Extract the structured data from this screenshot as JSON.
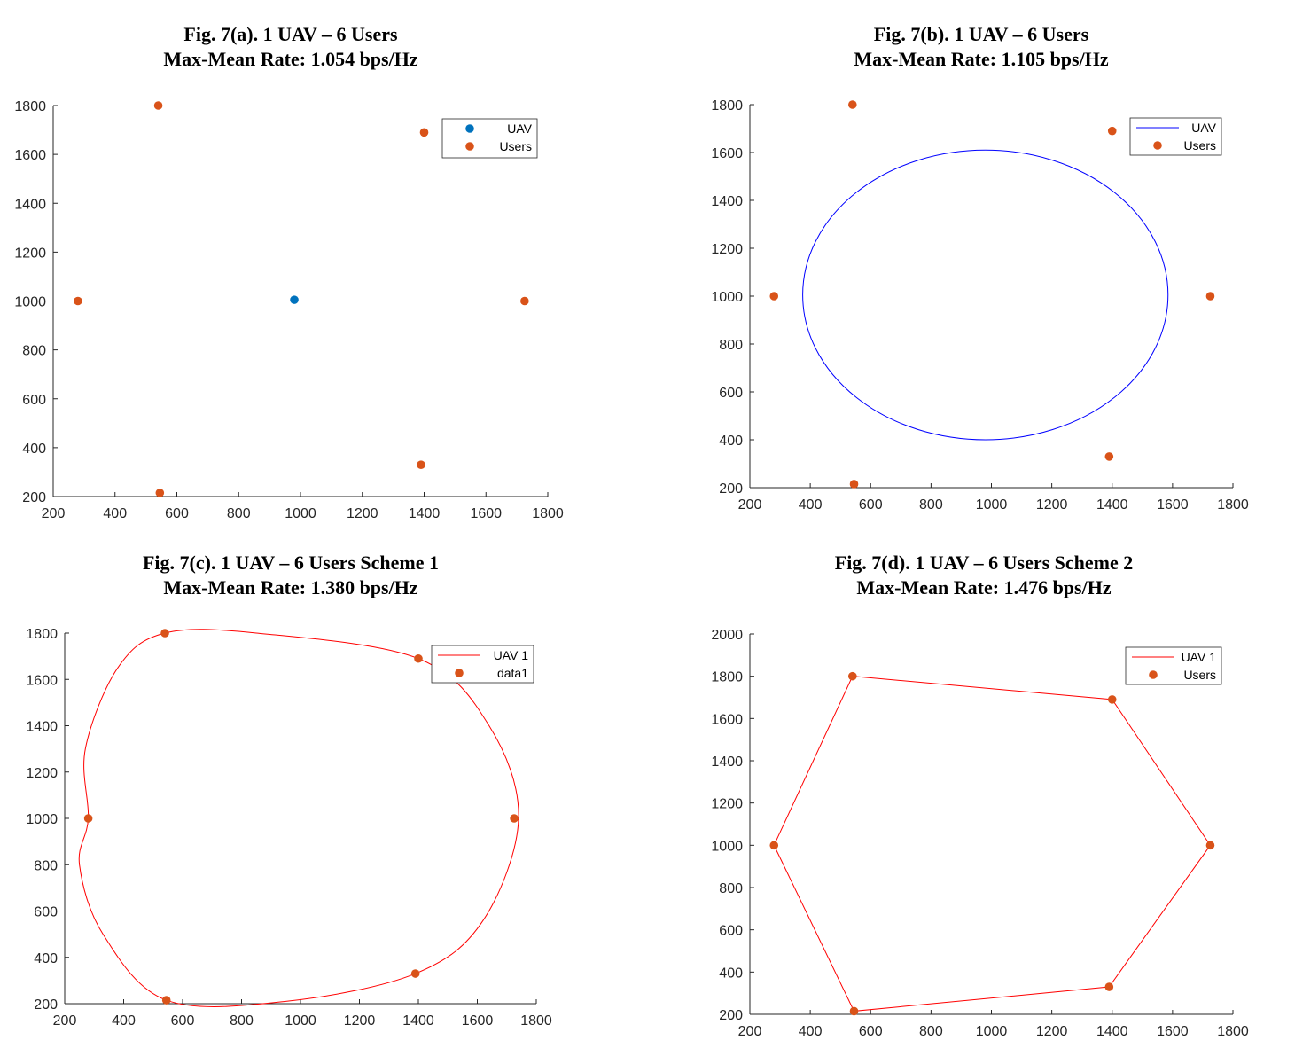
{
  "chart_data": [
    {
      "id": "a",
      "type": "scatter",
      "title": [
        "Fig. 7(a). 1 UAV – 6 Users",
        "Max-Mean Rate: 1.054 bps/Hz"
      ],
      "xlim": [
        200,
        1800
      ],
      "ylim": [
        200,
        1800
      ],
      "xticks": [
        200,
        400,
        600,
        800,
        1000,
        1200,
        1400,
        1600,
        1800
      ],
      "yticks": [
        200,
        400,
        600,
        800,
        1000,
        1200,
        1400,
        1600,
        1800
      ],
      "legend_position": "top-right",
      "series": [
        {
          "name": "UAV",
          "kind": "points",
          "color": "#0072BD",
          "points": [
            [
              980,
              1005
            ]
          ]
        },
        {
          "name": "Users",
          "kind": "points",
          "color": "#D95319",
          "points": [
            [
              540,
              1800
            ],
            [
              1400,
              1690
            ],
            [
              280,
              1000
            ],
            [
              1725,
              1000
            ],
            [
              545,
              215
            ],
            [
              1390,
              330
            ]
          ]
        }
      ]
    },
    {
      "id": "b",
      "type": "scatter",
      "title": [
        "Fig. 7(b). 1 UAV – 6 Users",
        "Max-Mean Rate: 1.105 bps/Hz"
      ],
      "xlim": [
        200,
        1800
      ],
      "ylim": [
        200,
        1800
      ],
      "xticks": [
        200,
        400,
        600,
        800,
        1000,
        1200,
        1400,
        1600,
        1800
      ],
      "yticks": [
        200,
        400,
        600,
        800,
        1000,
        1200,
        1400,
        1600,
        1800
      ],
      "legend_position": "top-right",
      "series": [
        {
          "name": "UAV",
          "kind": "ellipse",
          "color": "#0000FF",
          "center": [
            980,
            1005
          ],
          "radius_x": 605,
          "radius_y": 605
        },
        {
          "name": "Users",
          "kind": "points",
          "color": "#D95319",
          "points": [
            [
              540,
              1800
            ],
            [
              1400,
              1690
            ],
            [
              280,
              1000
            ],
            [
              1725,
              1000
            ],
            [
              545,
              215
            ],
            [
              1390,
              330
            ]
          ]
        }
      ]
    },
    {
      "id": "c",
      "type": "line",
      "title": [
        "Fig. 7(c). 1 UAV – 6 Users Scheme 1",
        "Max-Mean Rate: 1.380 bps/Hz"
      ],
      "xlim": [
        200,
        1800
      ],
      "ylim": [
        200,
        1800
      ],
      "xticks": [
        200,
        400,
        600,
        800,
        1000,
        1200,
        1400,
        1600,
        1800
      ],
      "yticks": [
        200,
        400,
        600,
        800,
        1000,
        1200,
        1400,
        1600,
        1800
      ],
      "legend_position": "top-right",
      "series": [
        {
          "name": "UAV 1",
          "kind": "smooth-closed",
          "color": "#FF0000",
          "points": [
            [
              540,
              1800
            ],
            [
              850,
              1800
            ],
            [
              1400,
              1690
            ],
            [
              1640,
              1400
            ],
            [
              1740,
              1000
            ],
            [
              1620,
              560
            ],
            [
              1390,
              330
            ],
            [
              950,
              210
            ],
            [
              545,
              215
            ],
            [
              330,
              500
            ],
            [
              250,
              800
            ],
            [
              280,
              1000
            ],
            [
              270,
              1300
            ],
            [
              380,
              1650
            ]
          ]
        },
        {
          "name": "data1",
          "kind": "points",
          "color": "#D95319",
          "points": [
            [
              540,
              1800
            ],
            [
              1400,
              1690
            ],
            [
              280,
              1000
            ],
            [
              1725,
              1000
            ],
            [
              545,
              215
            ],
            [
              1390,
              330
            ]
          ]
        }
      ]
    },
    {
      "id": "d",
      "type": "line",
      "title": [
        "Fig. 7(d). 1 UAV – 6 Users Scheme 2",
        "Max-Mean Rate: 1.476 bps/Hz"
      ],
      "xlim": [
        200,
        1800
      ],
      "ylim": [
        200,
        2000
      ],
      "xticks": [
        200,
        400,
        600,
        800,
        1000,
        1200,
        1400,
        1600,
        1800
      ],
      "yticks": [
        200,
        400,
        600,
        800,
        1000,
        1200,
        1400,
        1600,
        1800,
        2000
      ],
      "legend_position": "top-right",
      "series": [
        {
          "name": "UAV 1",
          "kind": "polygon-closed",
          "color": "#FF0000",
          "points": [
            [
              540,
              1800
            ],
            [
              1400,
              1690
            ],
            [
              1725,
              1000
            ],
            [
              1390,
              330
            ],
            [
              545,
              215
            ],
            [
              280,
              1000
            ]
          ]
        },
        {
          "name": "Users",
          "kind": "points",
          "color": "#D95319",
          "points": [
            [
              540,
              1800
            ],
            [
              1400,
              1690
            ],
            [
              1725,
              1000
            ],
            [
              1390,
              330
            ],
            [
              545,
              215
            ],
            [
              280,
              1000
            ]
          ]
        }
      ]
    }
  ]
}
